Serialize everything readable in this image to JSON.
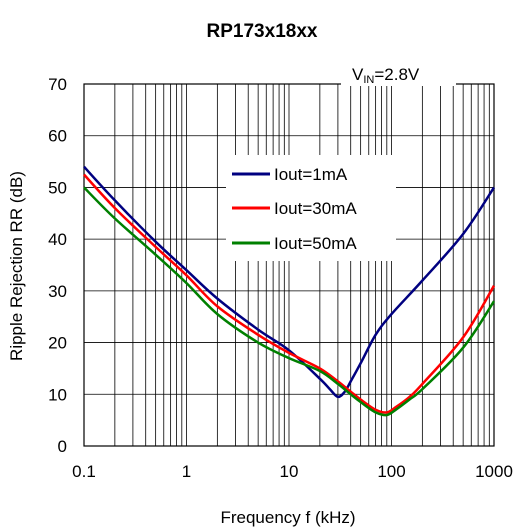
{
  "chart_data": {
    "type": "line",
    "title": "RP173x18xx",
    "condition": {
      "prefix": "V",
      "subscript": "IN",
      "suffix": "=2.8V"
    },
    "xlabel": "Frequency f (kHz)",
    "ylabel": "Ripple Rejection RR (dB)",
    "xscale": "log",
    "xlim": [
      0.1,
      1000
    ],
    "ylim": [
      0,
      70
    ],
    "x_ticks": [
      0.1,
      1,
      10,
      100,
      1000
    ],
    "x_tick_labels": [
      "0.1",
      "1",
      "10",
      "100",
      "1000"
    ],
    "y_ticks": [
      0,
      10,
      20,
      30,
      40,
      50,
      60,
      70
    ],
    "y_tick_labels": [
      "0",
      "10",
      "20",
      "30",
      "40",
      "50",
      "60",
      "70"
    ],
    "grid": true,
    "legend_position": "center",
    "series": [
      {
        "name": "Iout=1mA",
        "color": "#000080",
        "x": [
          0.1,
          0.2,
          0.5,
          1,
          2,
          5,
          10,
          20,
          25,
          30,
          35,
          40,
          50,
          70,
          100,
          200,
          500,
          1000
        ],
        "y": [
          54,
          47.5,
          39.5,
          34,
          28.5,
          22.5,
          18.5,
          13,
          11,
          9.5,
          10.5,
          12.5,
          16,
          21.5,
          25.5,
          32,
          41,
          50
        ]
      },
      {
        "name": "Iout=30mA",
        "color": "#ff0000",
        "x": [
          0.1,
          0.2,
          0.5,
          1,
          2,
          5,
          10,
          20,
          30,
          40,
          50,
          70,
          90,
          110,
          150,
          200,
          500,
          1000
        ],
        "y": [
          52.5,
          46,
          38.5,
          33,
          27,
          21.5,
          18,
          15,
          12.5,
          10.5,
          9,
          7,
          6.5,
          7.5,
          9.5,
          12,
          21,
          31
        ]
      },
      {
        "name": "Iout=50mA",
        "color": "#008000",
        "x": [
          0.1,
          0.2,
          0.5,
          1,
          2,
          5,
          10,
          20,
          30,
          40,
          50,
          70,
          90,
          110,
          150,
          200,
          500,
          1000
        ],
        "y": [
          50,
          44,
          37,
          31.5,
          25.5,
          20,
          17,
          14.5,
          12,
          10,
          8.5,
          6.5,
          6,
          7,
          9,
          11,
          19,
          28
        ]
      }
    ]
  }
}
